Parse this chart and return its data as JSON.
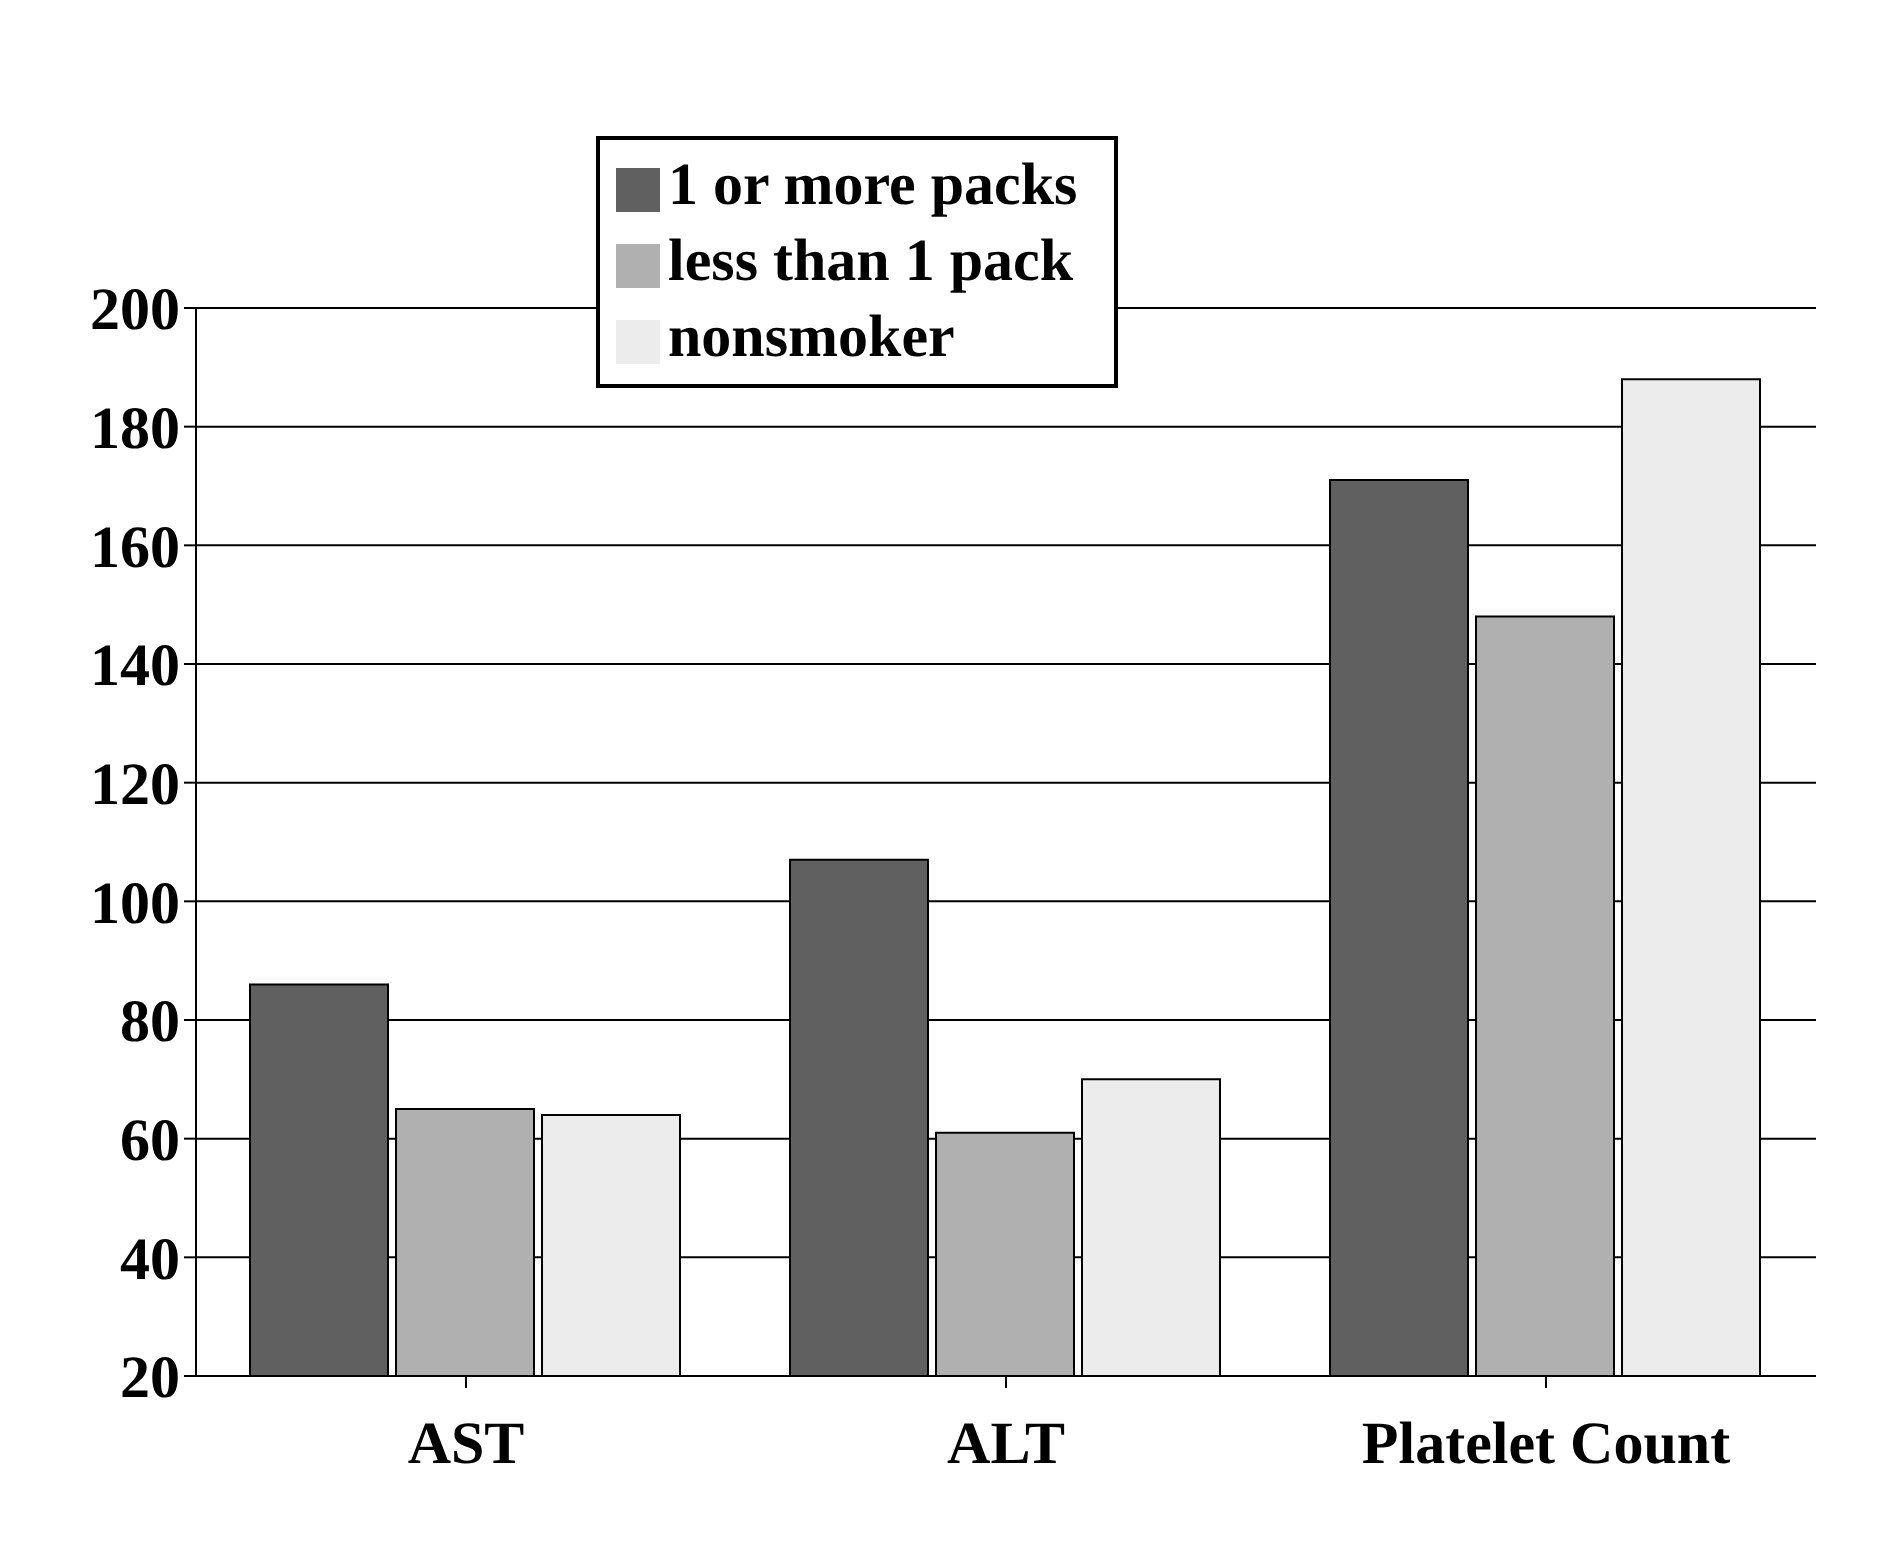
{
  "chart_data": {
    "type": "bar",
    "categories": [
      "AST",
      "ALT",
      "Platelet Count"
    ],
    "series": [
      {
        "name": "1 or more packs",
        "color": "#606060",
        "values": [
          86,
          107,
          171
        ]
      },
      {
        "name": "less than 1 pack",
        "color": "#b0b0b0",
        "values": [
          65,
          61,
          148
        ]
      },
      {
        "name": "nonsmoker",
        "color": "#ececec",
        "values": [
          64,
          70,
          188
        ]
      }
    ],
    "ylim": [
      20,
      200
    ],
    "yticks": [
      20,
      40,
      60,
      80,
      100,
      120,
      140,
      160,
      180,
      200
    ],
    "grid": "y",
    "legend": "top"
  }
}
